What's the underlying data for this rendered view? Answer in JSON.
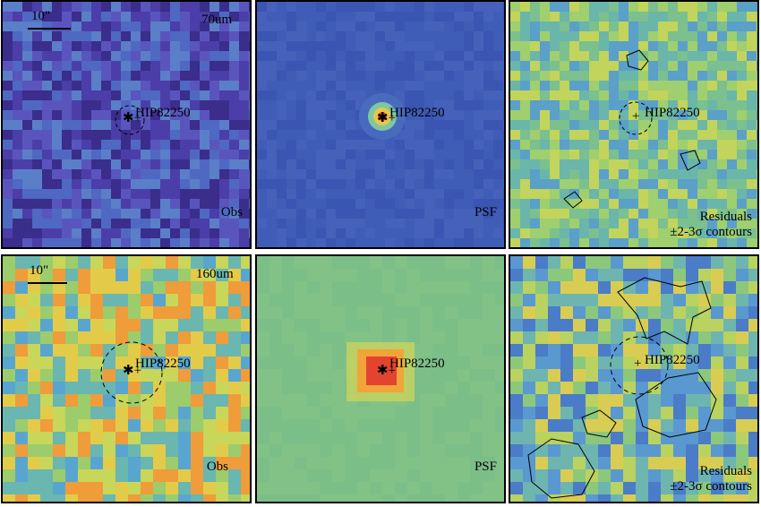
{
  "target": "HIP82250",
  "scale_bar": "10\"",
  "rows": [
    {
      "band": "70um",
      "panels": [
        {
          "kind": "obs",
          "label": "Obs",
          "bg": "#5454b0",
          "palette": [
            "#3a2d8c",
            "#4c3ea8",
            "#5a55bd",
            "#4f68c2",
            "#5b7ec9"
          ]
        },
        {
          "kind": "psf",
          "label": "PSF",
          "bg": "#3d58b4",
          "palette": [
            "#3a55b2",
            "#3f5cb6",
            "#4561ba"
          ]
        },
        {
          "kind": "residual",
          "label": "Residuals",
          "label2": "±2-3σ contours",
          "bg": "#7ec08a",
          "palette": [
            "#5aa0c8",
            "#7bc08e",
            "#9fcf6e",
            "#c2d45b",
            "#6ab6aa"
          ]
        }
      ]
    },
    {
      "band": "160um",
      "panels": [
        {
          "kind": "obs",
          "label": "Obs",
          "bg": "#a9d06a",
          "palette": [
            "#9ccc6c",
            "#c8d65a",
            "#e3cb4a",
            "#ef9c3a",
            "#6ab6b0",
            "#58a6d0"
          ]
        },
        {
          "kind": "psf",
          "label": "PSF",
          "bg": "#7fbf88",
          "palette": [
            "#7cbe88",
            "#82c286"
          ]
        },
        {
          "kind": "residual",
          "label": "Residuals",
          "label2": "±2-3σ contours",
          "bg": "#8bc57e",
          "palette": [
            "#6eb5b0",
            "#8cc87c",
            "#b9d260",
            "#d8cd52",
            "#5a98d0",
            "#4a7cc8"
          ]
        }
      ]
    }
  ]
}
